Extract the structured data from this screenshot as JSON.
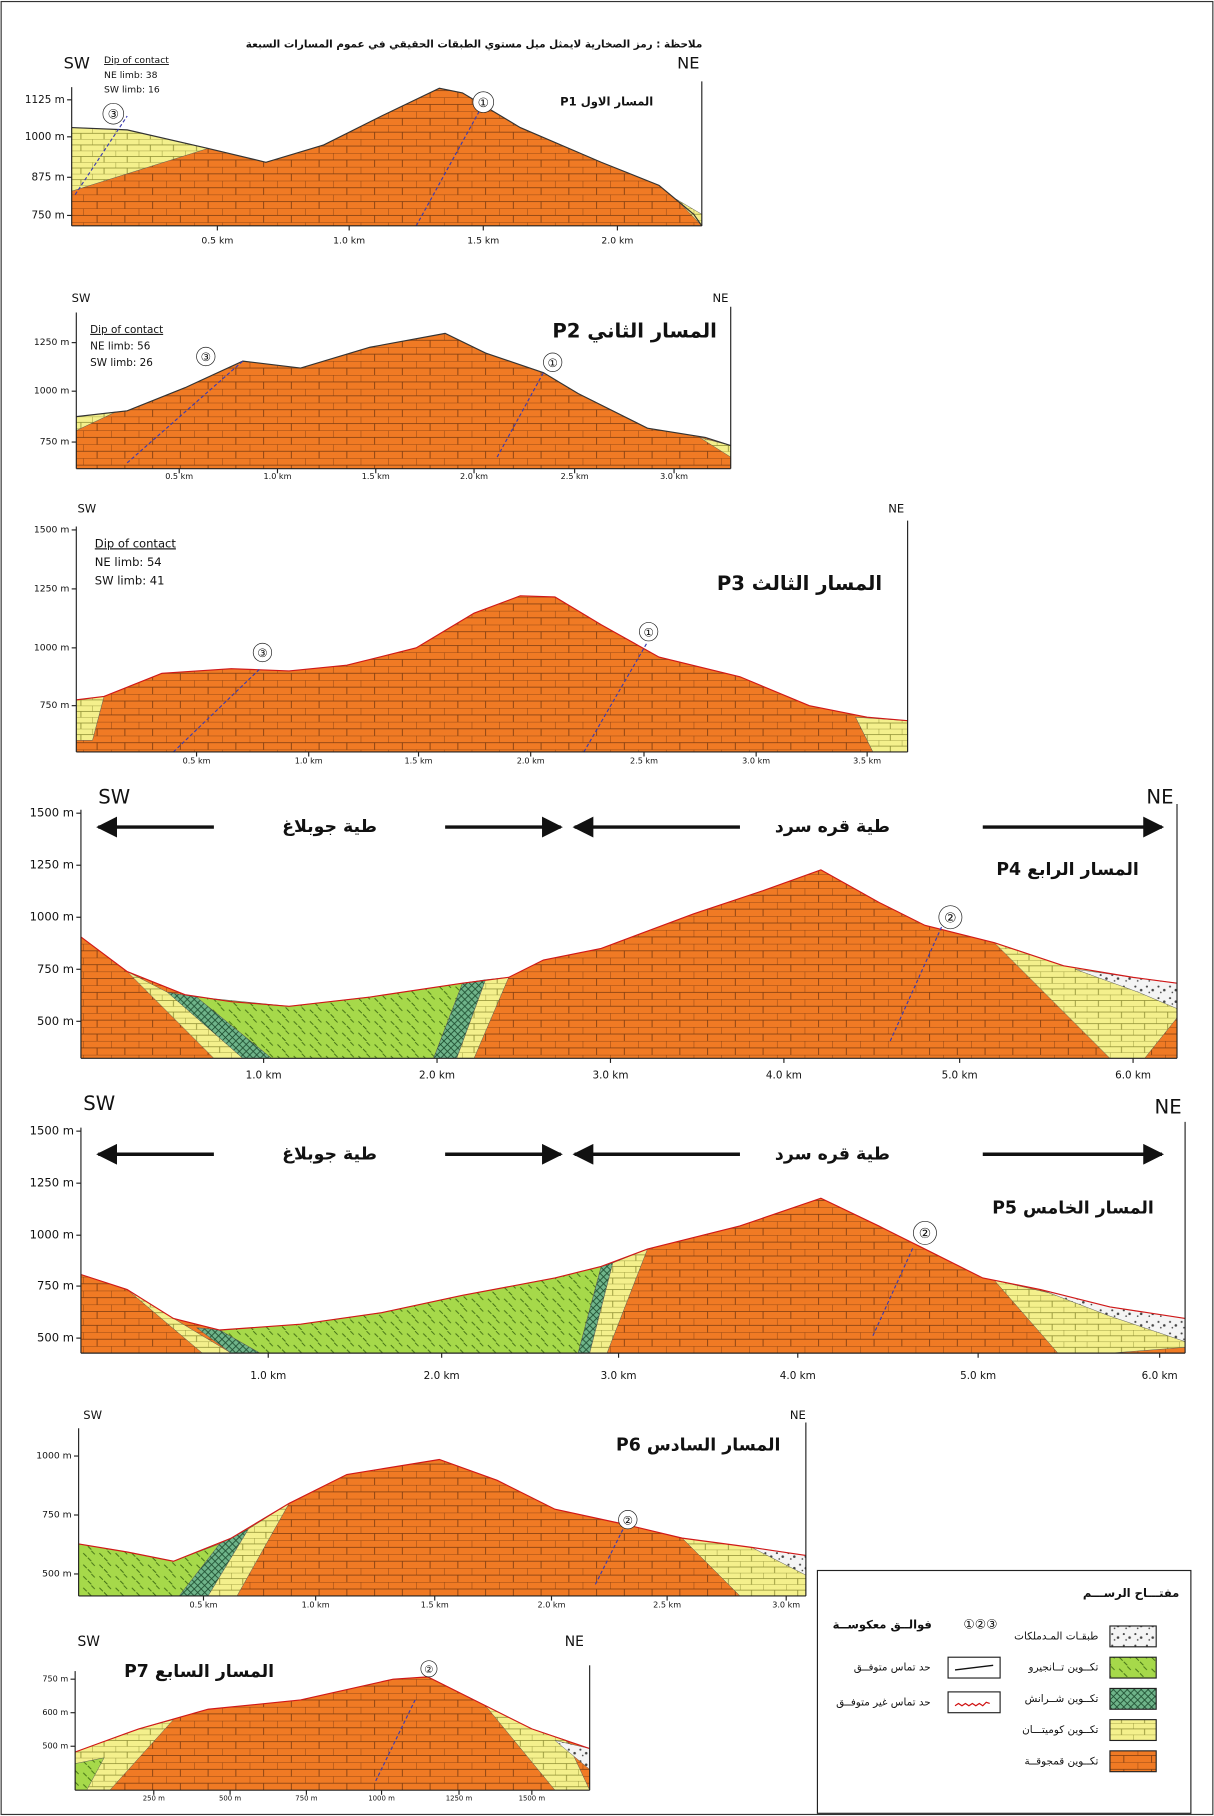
{
  "note": "ملاحظة : رمز الصخارية لايمثل ميل مستوي الطبقات الحقيقي في عموم المسارات السبعة",
  "profiles": [
    {
      "sw": "SW",
      "ne": "NE",
      "title": "P1 المسار الاول",
      "dip": {
        "heading": "Dip of contact",
        "ne": "NE limb: 38",
        "sw": "SW limb: 16"
      },
      "yticks": [
        "1125 m",
        "1000 m",
        "875 m",
        "750 m"
      ],
      "xticks": [
        "0.5 km",
        "1.0 km",
        "1.5 km",
        "2.0 km"
      ],
      "faults": [
        "③",
        "①"
      ]
    },
    {
      "sw": "SW",
      "ne": "NE",
      "title": "P2 المسار الثاني",
      "dip": {
        "heading": "Dip of contact",
        "ne": "NE limb: 56",
        "sw": "SW limb: 26"
      },
      "yticks": [
        "1250 m",
        "1000 m",
        "750 m"
      ],
      "xticks": [
        "0.5 km",
        "1.0 km",
        "1.5 km",
        "2.0 km",
        "2.5 km",
        "3.0 km"
      ],
      "faults": [
        "③",
        "①"
      ]
    },
    {
      "sw": "SW",
      "ne": "NE",
      "title": "P3 المسار الثالث",
      "dip": {
        "heading": "Dip of contact",
        "ne": "NE  limb: 54",
        "sw": "SW limb: 41"
      },
      "yticks": [
        "1500 m",
        "1250 m",
        "1000 m",
        "750 m"
      ],
      "xticks": [
        "0.5 km",
        "1.0 km",
        "1.5 km",
        "2.0 km",
        "2.5 km",
        "3.0 km",
        "3.5 km"
      ],
      "faults": [
        "③",
        "①"
      ]
    },
    {
      "sw": "SW",
      "ne": "NE",
      "title": "P4 المسار الرابع",
      "folds": [
        "طية جوبلاغ",
        "طية قره سرد"
      ],
      "yticks": [
        "1500 m",
        "1250 m",
        "1000 m",
        "750 m",
        "500 m"
      ],
      "xticks": [
        "1.0 km",
        "2.0 km",
        "3.0 km",
        "4.0 km",
        "5.0 km",
        "6.0 km"
      ],
      "faults": [
        "②"
      ]
    },
    {
      "sw": "SW",
      "ne": "NE",
      "title": "P5 المسار الخامس",
      "folds": [
        "طية جوبلاغ",
        "طية قره سرد"
      ],
      "yticks": [
        "1500 m",
        "1250 m",
        "1000 m",
        "750 m",
        "500 m"
      ],
      "xticks": [
        "1.0 km",
        "2.0 km",
        "3.0 km",
        "4.0 km",
        "5.0 km",
        "6.0 km"
      ],
      "faults": [
        "②"
      ]
    },
    {
      "sw": "SW",
      "ne": "NE",
      "title": "P6 المسار السادس",
      "yticks": [
        "1000 m",
        "750 m",
        "500 m"
      ],
      "xticks": [
        "0.5 km",
        "1.0 km",
        "1.5 km",
        "2.0 km",
        "2.5 km",
        "3.0 km"
      ],
      "faults": [
        "②"
      ]
    },
    {
      "sw": "SW",
      "ne": "NE",
      "title": "P7 المسار السابع",
      "yticks": [
        "750 m",
        "600 m",
        "500 m"
      ],
      "xticks": [
        "250 m",
        "500 m",
        "750 m",
        "1000 m",
        "1250 m",
        "1500 m"
      ],
      "faults": [
        "②"
      ]
    }
  ],
  "legend": {
    "title": "مفتـــاح الرســـم",
    "units": [
      "طبقـات المـدملكات",
      "تكــوين تــانجيرو",
      "تكــوين شــرانش",
      "تكــوين كوميتـــان",
      "تكــوين قمجوقــة"
    ],
    "faults_title": "فوالــق معكوســة",
    "faults_symbols": "①②③",
    "contacts": [
      "حد تماس متوفــق",
      "حد تماس غير متوفــق"
    ]
  }
}
